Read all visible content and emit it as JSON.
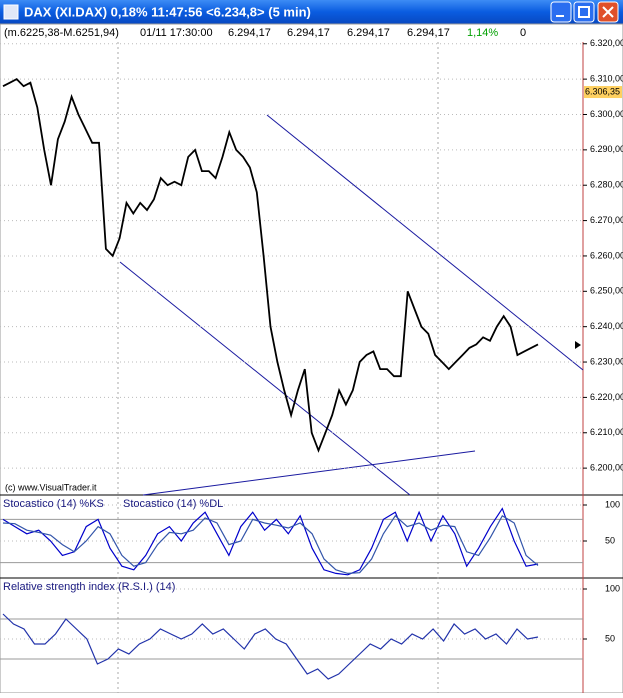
{
  "window": {
    "title": "DAX (XI.DAX) 0,18% 11:47:56 <6.234,8> (5 min)",
    "info": [
      "(m.6225,38-M.6251,94)",
      "01/11 17:30:00",
      "6.294,17",
      "6.294,17",
      "6.294,17",
      "6.294,17",
      "1,14%",
      "0"
    ]
  },
  "chart_data": [
    {
      "type": "line",
      "color": "#000000",
      "credit": "(c) www.VisualTrader.it",
      "values": [
        6308,
        6309,
        6310,
        6308,
        6309,
        6302,
        6290,
        6280,
        6293,
        6298,
        6305,
        6300,
        6296,
        6292,
        6292,
        6262,
        6260,
        6265,
        6275,
        6272,
        6275,
        6273,
        6276,
        6282,
        6280,
        6281,
        6280,
        6288,
        6290,
        6284,
        6284,
        6282,
        6288,
        6295,
        6290,
        6288,
        6285,
        6278,
        6260,
        6240,
        6230,
        6222,
        6215,
        6222,
        6228,
        6210,
        6205,
        6210,
        6215,
        6222,
        6218,
        6222,
        6230,
        6232,
        6233,
        6228,
        6228,
        6226,
        6226,
        6250,
        6245,
        6240,
        6238,
        6232,
        6230,
        6228,
        6230,
        6232,
        6234,
        6235,
        6237,
        6236,
        6240,
        6243,
        6240,
        6232,
        6233,
        6234,
        6235
      ],
      "ylim": [
        6192.4,
        6320.5
      ],
      "yticks": [
        {
          "value": 6200,
          "label": "6.200,00"
        },
        {
          "value": 6210,
          "label": "6.210,00"
        },
        {
          "value": 6220,
          "label": "6.220,00"
        },
        {
          "value": 6230,
          "label": "6.230,00"
        },
        {
          "value": 6240,
          "label": "6.240,00"
        },
        {
          "value": 6250,
          "label": "6.250,00"
        },
        {
          "value": 6260,
          "label": "6.260,00"
        },
        {
          "value": 6270,
          "label": "6.270,00"
        },
        {
          "value": 6280,
          "label": "6.280,00"
        },
        {
          "value": 6290,
          "label": "6.290,00"
        },
        {
          "value": 6300,
          "label": "6.300,00"
        },
        {
          "value": 6310,
          "label": "6.310,00"
        },
        {
          "value": 6320,
          "label": "6.320,00"
        }
      ],
      "marker": {
        "value": 6306.35,
        "label": "6.306,35"
      },
      "grid": true
    },
    {
      "type": "line",
      "series": [
        {
          "name": "Stocastico (14) %KS",
          "color": "#0000cc",
          "values": [
            80,
            70,
            60,
            65,
            50,
            30,
            35,
            70,
            80,
            40,
            15,
            10,
            30,
            60,
            70,
            50,
            75,
            90,
            60,
            30,
            70,
            90,
            65,
            80,
            60,
            85,
            40,
            10,
            5,
            3,
            10,
            40,
            80,
            90,
            50,
            90,
            50,
            85,
            60,
            15,
            40,
            70,
            95,
            50,
            15,
            18
          ]
        },
        {
          "name": "Stocastico (14) %DL",
          "color": "#3355aa",
          "values": [
            75,
            74,
            65,
            62,
            58,
            45,
            35,
            50,
            70,
            60,
            30,
            15,
            20,
            45,
            62,
            60,
            65,
            82,
            75,
            45,
            50,
            80,
            75,
            72,
            68,
            75,
            60,
            25,
            10,
            5,
            6,
            25,
            60,
            85,
            70,
            75,
            65,
            72,
            70,
            35,
            30,
            55,
            85,
            75,
            30,
            16
          ]
        }
      ],
      "ylim": [
        0,
        100
      ],
      "yticks": [
        50,
        100
      ],
      "levels": [
        20,
        80
      ]
    },
    {
      "type": "line",
      "series": [
        {
          "name": "Relative strength index (R.S.I.) (14)",
          "color": "#2233aa",
          "values": [
            75,
            65,
            60,
            45,
            45,
            55,
            70,
            60,
            50,
            25,
            30,
            40,
            35,
            45,
            50,
            60,
            55,
            50,
            55,
            65,
            55,
            60,
            50,
            40,
            55,
            60,
            50,
            45,
            30,
            15,
            20,
            10,
            15,
            25,
            35,
            45,
            40,
            50,
            45,
            55,
            50,
            60,
            48,
            65,
            55,
            60,
            50,
            55,
            45,
            60,
            50,
            52
          ]
        }
      ],
      "ylim": [
        0,
        100
      ],
      "yticks": [
        50,
        100
      ],
      "levels": [
        30,
        70
      ]
    }
  ]
}
